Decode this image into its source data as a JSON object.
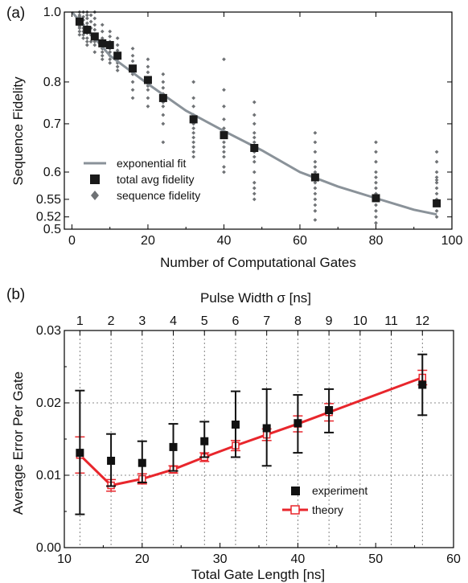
{
  "chart_data": [
    {
      "panel_label": "(a)",
      "type": "scatter",
      "xlabel": "Number of Computational Gates",
      "ylabel": "Sequence Fidelity",
      "xlim": [
        -2,
        100
      ],
      "ylim": [
        0.5,
        1.0
      ],
      "yscale": "reciprocal-log",
      "xticks": [
        0,
        20,
        40,
        60,
        80,
        100
      ],
      "xtick_labels": [
        "0",
        "20",
        "40",
        "60",
        "80",
        "100"
      ],
      "yticks": [
        0.5,
        0.52,
        0.55,
        0.6,
        0.7,
        0.8,
        1.0
      ],
      "ytick_labels": [
        "0.5",
        "0.52",
        "0.55",
        "0.6",
        "0.7",
        "0.8",
        "1.0"
      ],
      "grid": false,
      "legend_position": "bottom-left",
      "legend": [
        "exponential fit",
        "total avg fidelity",
        "sequence fidelity"
      ],
      "colors": {
        "fit": "#8a9299",
        "avg": "#1a1a1a",
        "seq": "#6f7275"
      },
      "series": [
        {
          "name": "exponential fit",
          "kind": "line",
          "x": [
            0,
            10,
            20,
            30,
            40,
            50,
            60,
            70,
            80,
            90,
            96
          ],
          "y": [
            1.0,
            0.87,
            0.795,
            0.73,
            0.684,
            0.643,
            0.6,
            0.573,
            0.552,
            0.532,
            0.524
          ]
        },
        {
          "name": "total avg fidelity",
          "kind": "marker-square",
          "x": [
            2,
            4,
            6,
            8,
            10,
            12,
            16,
            20,
            24,
            32,
            40,
            48,
            64,
            80,
            96
          ],
          "y": [
            0.97,
            0.945,
            0.925,
            0.905,
            0.9,
            0.87,
            0.835,
            0.805,
            0.76,
            0.71,
            0.675,
            0.648,
            0.59,
            0.552,
            0.543
          ]
        },
        {
          "name": "sequence fidelity",
          "kind": "marker-diamond",
          "groups": [
            {
              "x": 2,
              "y": [
                1.0,
                0.99,
                0.985,
                0.975,
                0.97,
                0.965,
                0.955,
                0.95,
                0.94,
                0.93
              ]
            },
            {
              "x": 3,
              "y": [
                1.0,
                0.985,
                0.975,
                0.96,
                0.95,
                0.94,
                0.93,
                0.92
              ]
            },
            {
              "x": 4,
              "y": [
                1.0,
                0.99,
                0.98,
                0.965,
                0.955,
                0.945,
                0.935,
                0.92,
                0.91,
                0.9
              ]
            },
            {
              "x": 5,
              "y": [
                0.99,
                0.97,
                0.95,
                0.93,
                0.91
              ]
            },
            {
              "x": 6,
              "y": [
                1.0,
                0.98,
                0.96,
                0.945,
                0.93,
                0.92,
                0.91,
                0.9,
                0.88
              ]
            },
            {
              "x": 8,
              "y": [
                0.96,
                0.94,
                0.92,
                0.905,
                0.89,
                0.88,
                0.87,
                0.86
              ]
            },
            {
              "x": 10,
              "y": [
                0.94,
                0.925,
                0.91,
                0.9,
                0.89,
                0.88,
                0.87,
                0.86,
                0.85
              ]
            },
            {
              "x": 12,
              "y": [
                0.92,
                0.9,
                0.885,
                0.87,
                0.86,
                0.85,
                0.84,
                0.83
              ]
            },
            {
              "x": 16,
              "y": [
                0.89,
                0.87,
                0.855,
                0.84,
                0.83,
                0.82,
                0.8,
                0.78,
                0.76
              ]
            },
            {
              "x": 20,
              "y": [
                0.86,
                0.84,
                0.825,
                0.81,
                0.8,
                0.79,
                0.78,
                0.76,
                0.74
              ]
            },
            {
              "x": 24,
              "y": [
                0.82,
                0.8,
                0.785,
                0.77,
                0.76,
                0.75,
                0.74,
                0.72,
                0.7,
                0.66
              ]
            },
            {
              "x": 32,
              "y": [
                0.8,
                0.76,
                0.74,
                0.72,
                0.71,
                0.7,
                0.69,
                0.68,
                0.67,
                0.66,
                0.65,
                0.64,
                0.63
              ]
            },
            {
              "x": 40,
              "y": [
                0.86,
                0.78,
                0.74,
                0.71,
                0.69,
                0.68,
                0.67,
                0.66,
                0.65,
                0.64,
                0.63,
                0.61,
                0.6
              ]
            },
            {
              "x": 48,
              "y": [
                0.75,
                0.72,
                0.7,
                0.68,
                0.67,
                0.66,
                0.64,
                0.63,
                0.62,
                0.6,
                0.58,
                0.57,
                0.56,
                0.55
              ]
            },
            {
              "x": 64,
              "y": [
                0.68,
                0.66,
                0.64,
                0.62,
                0.61,
                0.6,
                0.59,
                0.58,
                0.57,
                0.56,
                0.55,
                0.54,
                0.53,
                0.515
              ]
            },
            {
              "x": 80,
              "y": [
                0.66,
                0.64,
                0.62,
                0.6,
                0.59,
                0.58,
                0.57,
                0.56,
                0.55,
                0.54,
                0.53,
                0.52,
                0.51
              ]
            },
            {
              "x": 96,
              "y": [
                0.64,
                0.62,
                0.6,
                0.59,
                0.585,
                0.58,
                0.57,
                0.56,
                0.55,
                0.54,
                0.53,
                0.52
              ]
            }
          ]
        }
      ]
    },
    {
      "panel_label": "(b)",
      "type": "line",
      "xlabel": "Total Gate Length [ns]",
      "ylabel": "Average Error Per Gate",
      "x2label": "Pulse Width σ [ns]",
      "xlim": [
        10,
        60
      ],
      "ylim": [
        0.0,
        0.03
      ],
      "xticks": [
        10,
        20,
        30,
        40,
        50,
        60
      ],
      "xtick_labels": [
        "10",
        "20",
        "30",
        "40",
        "50",
        "60"
      ],
      "yticks": [
        0.0,
        0.01,
        0.02,
        0.03
      ],
      "ytick_labels": [
        "0.00",
        "0.01",
        "0.02",
        "0.03"
      ],
      "top_ticks": [
        {
          "x": 12,
          "label": "1"
        },
        {
          "x": 16,
          "label": "2"
        },
        {
          "x": 20,
          "label": "3"
        },
        {
          "x": 24,
          "label": "4"
        },
        {
          "x": 28,
          "label": "5"
        },
        {
          "x": 32,
          "label": "6"
        },
        {
          "x": 36,
          "label": "7"
        },
        {
          "x": 40,
          "label": "8"
        },
        {
          "x": 44,
          "label": "9"
        },
        {
          "x": 48,
          "label": "10"
        },
        {
          "x": 52,
          "label": "11"
        },
        {
          "x": 56,
          "label": "12"
        }
      ],
      "grid": true,
      "legend_position": "bottom-right",
      "legend": [
        "experiment",
        "theory"
      ],
      "colors": {
        "experiment": "#111111",
        "theory": "#e8262c"
      },
      "series": [
        {
          "name": "experiment",
          "kind": "marker-square-errorbar",
          "x": [
            12,
            16,
            20,
            24,
            28,
            32,
            36,
            40,
            44,
            56
          ],
          "y": [
            0.0131,
            0.012,
            0.0117,
            0.0139,
            0.0147,
            0.017,
            0.0165,
            0.0172,
            0.019,
            0.0225
          ],
          "err_low": [
            0.0085,
            0.0035,
            0.0027,
            0.0033,
            0.0022,
            0.0045,
            0.0052,
            0.0041,
            0.0031,
            0.0042
          ],
          "err_high": [
            0.0086,
            0.0037,
            0.003,
            0.0032,
            0.0027,
            0.0046,
            0.0054,
            0.0039,
            0.0029,
            0.0042
          ]
        },
        {
          "name": "theory",
          "kind": "line-open-square-errorbar",
          "x": [
            12,
            16,
            20,
            24,
            28,
            32,
            36,
            40,
            44,
            56
          ],
          "y": [
            0.0128,
            0.0086,
            0.0095,
            0.0108,
            0.0125,
            0.0141,
            0.0156,
            0.0171,
            0.0187,
            0.0235
          ],
          "err": [
            0.0025,
            0.0008,
            0.0007,
            0.0005,
            0.0006,
            0.0007,
            0.0008,
            0.0011,
            0.0012,
            0.001
          ]
        }
      ]
    }
  ]
}
